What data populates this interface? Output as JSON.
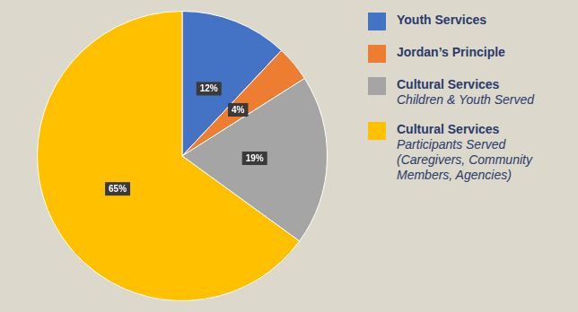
{
  "chart_data": {
    "type": "pie",
    "categories": [
      "Youth Services",
      "Jordan’s Principle",
      "Cultural Services\nChildren & Youth Served",
      "Cultural Services\nParticipants Served (Caregivers, Community Members, Agencies)"
    ],
    "values": [
      12,
      4,
      19,
      65
    ],
    "value_labels": [
      "12%",
      "4%",
      "19%",
      "65%"
    ],
    "colors": [
      "#4472c4",
      "#ed7d31",
      "#a5a5a5",
      "#ffc000"
    ],
    "data_labels": true,
    "legend": "right"
  }
}
